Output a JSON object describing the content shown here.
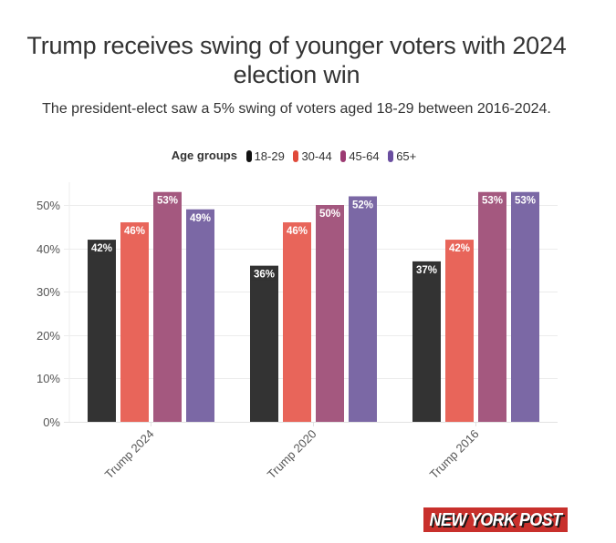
{
  "chart_data": {
    "type": "bar",
    "title": "Trump receives swing of younger voters with 2024 election win",
    "subtitle": "The president-elect saw a 5% swing of voters aged 18-29 between 2016-2024.",
    "legend_title": "Age groups",
    "legend_position": "top-center",
    "categories": [
      "Trump 2024",
      "Trump 2020",
      "Trump 2016"
    ],
    "series": [
      {
        "name": "18-29",
        "color": "#333333",
        "values": [
          42,
          36,
          37
        ]
      },
      {
        "name": "30-44",
        "color": "#e8655a",
        "values": [
          46,
          46,
          42
        ]
      },
      {
        "name": "45-64",
        "color": "#a4587f",
        "values": [
          53,
          50,
          53
        ]
      },
      {
        "name": "65+",
        "color": "#7b68a5",
        "values": [
          49,
          52,
          53
        ]
      }
    ],
    "value_suffix": "%",
    "xlabel": "",
    "ylabel": "",
    "ylim": [
      0,
      55
    ],
    "yticks": [
      0,
      10,
      20,
      30,
      40,
      50
    ],
    "ytick_labels": [
      "0%",
      "10%",
      "20%",
      "30%",
      "40%",
      "50%"
    ],
    "grid": true
  },
  "header": {
    "title": "Trump receives swing of younger voters with 2024 election win",
    "subtitle": "The president-elect saw a 5% swing of voters aged 18-29 between 2016-2024."
  },
  "legend": {
    "title": "Age groups",
    "items": [
      {
        "label": "18-29",
        "color": "#111111"
      },
      {
        "label": "30-44",
        "color": "#e04a3a"
      },
      {
        "label": "45-64",
        "color": "#9c3a72"
      },
      {
        "label": "65+",
        "color": "#6a4ea0"
      }
    ]
  },
  "branding": {
    "logo_text": "NEW YORK POST",
    "logo_color": "#c8302c"
  }
}
